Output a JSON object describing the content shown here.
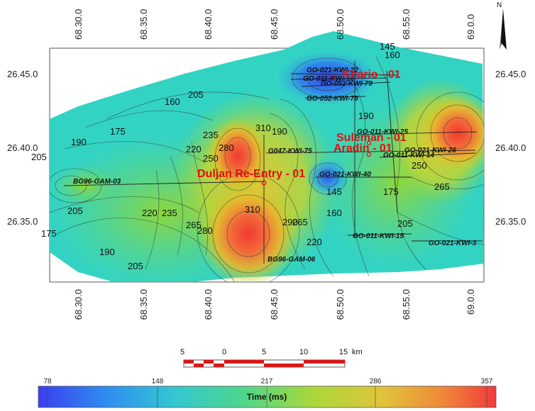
{
  "map": {
    "x_ticks": [
      "68.30.0",
      "68.35.0",
      "68.40.0",
      "68.45.0",
      "68.50.0",
      "68.55.0",
      "69.0.0"
    ],
    "y_ticks": [
      "26.45.0",
      "26.40.0",
      "26.35.0"
    ],
    "contour_labels": [
      "160",
      "175",
      "205",
      "190",
      "205",
      "175",
      "190",
      "205",
      "220",
      "235",
      "265",
      "280",
      "310",
      "220",
      "235",
      "250",
      "280",
      "290",
      "265",
      "310",
      "145",
      "175",
      "190",
      "205",
      "265",
      "160",
      "220",
      "190",
      "205",
      "250",
      "160",
      "145"
    ],
    "seismic_lines": [
      {
        "name": "GO-021-KWI-22"
      },
      {
        "name": "GO-011-KWI-16"
      },
      {
        "name": "GO-052-KWI-79"
      },
      {
        "name": "GO-052-KWI-78"
      },
      {
        "name": "GO-011-KWI-25"
      },
      {
        "name": "G047-KWI-75"
      },
      {
        "name": "GO-021-KWI-26"
      },
      {
        "name": "GO-011-KWI-14"
      },
      {
        "name": "GO-021-KWI-40"
      },
      {
        "name": "BG96-GAM-03"
      },
      {
        "name": "BG96-GAM-06"
      },
      {
        "name": "GO-011-KWI-15"
      },
      {
        "name": "GO-021-KWI-3"
      }
    ],
    "wells": [
      {
        "name": "Khario - 01"
      },
      {
        "name": "Suleman - 01"
      },
      {
        "name": "Aradin - 01"
      },
      {
        "name": "Duljan Re-Entry - 01"
      }
    ],
    "colors": {
      "low": "#3a3ef0",
      "mid": "#33d3c4",
      "mid2": "#b7d92e",
      "high": "#f04535"
    }
  },
  "north_arrow": {
    "label": "N"
  },
  "scale_bar": {
    "labels": [
      "5",
      "0",
      "5",
      "10",
      "15"
    ],
    "unit": "km"
  },
  "colorbar": {
    "title": "Time (ms)",
    "ticks": [
      "78",
      "148",
      "217",
      "286",
      "357"
    ],
    "min": 78,
    "max": 357
  }
}
